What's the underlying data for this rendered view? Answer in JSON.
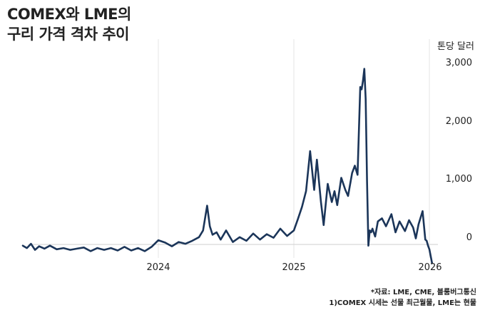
{
  "header": {
    "title_line1": "COMEX와 LME의",
    "title_line2": "구리 가격 격차 추이"
  },
  "notes": {
    "source": "*자료: LME, CME, 블룸버그통신",
    "footnote": "1)COMEX 시세는 선물 최근월물, LME는 현물"
  },
  "chart_data": {
    "type": "line",
    "title": "COMEX와 LME의 구리 가격 격차 추이",
    "ylabel": "톤당 달러",
    "xlabel": "",
    "ylim": [
      -300,
      3000
    ],
    "xlim": [
      2023.0,
      2026.1
    ],
    "grid": "vertical",
    "y_ticks": [
      {
        "value": 3000,
        "label": "3,000"
      },
      {
        "value": 2000,
        "label": "2,000"
      },
      {
        "value": 1000,
        "label": "1,000"
      },
      {
        "value": 0,
        "label": "0"
      }
    ],
    "x_ticks": [
      {
        "value": 2024.0,
        "label": "2024"
      },
      {
        "value": 2025.0,
        "label": "2025"
      },
      {
        "value": 2026.0,
        "label": "2026"
      }
    ],
    "line_color": "#1b3559",
    "series": [
      {
        "name": "",
        "x": [
          2023.0,
          2023.03,
          2023.06,
          2023.09,
          2023.12,
          2023.16,
          2023.2,
          2023.25,
          2023.3,
          2023.35,
          2023.4,
          2023.45,
          2023.5,
          2023.55,
          2023.6,
          2023.65,
          2023.7,
          2023.75,
          2023.8,
          2023.85,
          2023.9,
          2023.95,
          2024.0,
          2024.05,
          2024.1,
          2024.15,
          2024.2,
          2024.25,
          2024.3,
          2024.33,
          2024.36,
          2024.38,
          2024.4,
          2024.43,
          2024.46,
          2024.5,
          2024.55,
          2024.6,
          2024.65,
          2024.7,
          2024.75,
          2024.8,
          2024.85,
          2024.9,
          2024.95,
          2025.0,
          2025.03,
          2025.06,
          2025.09,
          2025.12,
          2025.15,
          2025.17,
          2025.2,
          2025.22,
          2025.25,
          2025.28,
          2025.3,
          2025.32,
          2025.35,
          2025.38,
          2025.4,
          2025.43,
          2025.45,
          2025.47,
          2025.49,
          2025.5,
          2025.51,
          2025.52,
          2025.53,
          2025.54,
          2025.55,
          2025.56,
          2025.57,
          2025.58,
          2025.6,
          2025.62,
          2025.65,
          2025.68,
          2025.72,
          2025.75,
          2025.78,
          2025.82,
          2025.85,
          2025.88,
          2025.9,
          2025.92,
          2025.95,
          2025.97,
          2025.98,
          2025.99,
          2026.0,
          2026.02
        ],
        "y": [
          -20,
          -60,
          10,
          -90,
          -30,
          -70,
          -20,
          -80,
          -60,
          -90,
          -70,
          -50,
          -110,
          -60,
          -90,
          -60,
          -100,
          -40,
          -100,
          -60,
          -110,
          -40,
          70,
          30,
          -30,
          40,
          10,
          60,
          120,
          230,
          640,
          300,
          160,
          200,
          80,
          230,
          40,
          120,
          60,
          180,
          80,
          170,
          110,
          260,
          140,
          230,
          420,
          620,
          880,
          1540,
          900,
          1400,
          700,
          320,
          1000,
          700,
          880,
          650,
          1100,
          900,
          800,
          1180,
          1300,
          1150,
          2600,
          2560,
          2700,
          2900,
          2400,
          1050,
          -20,
          230,
          200,
          260,
          130,
          380,
          430,
          300,
          500,
          200,
          380,
          220,
          400,
          280,
          100,
          330,
          550,
          80,
          60,
          -20,
          -80,
          -310
        ]
      }
    ]
  }
}
